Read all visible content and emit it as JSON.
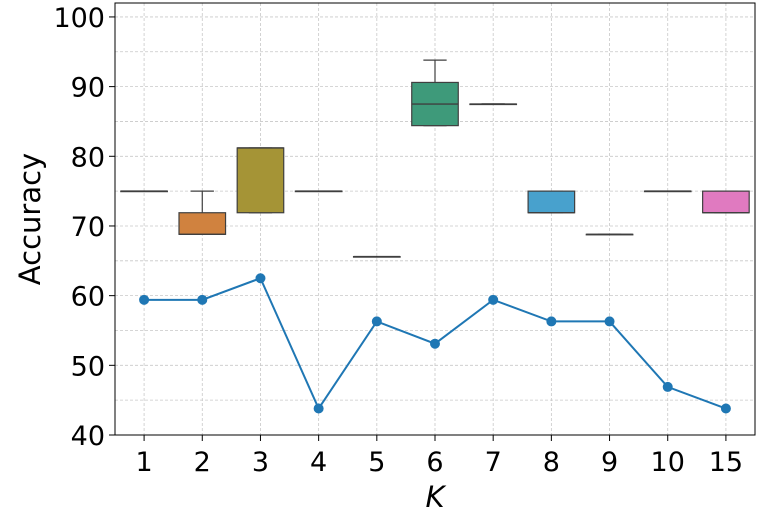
{
  "chart_data": {
    "type": "box+line",
    "title": "",
    "xlabel": "K",
    "ylabel": "Accuracy",
    "ylim": [
      40,
      102
    ],
    "yticks": [
      40,
      50,
      60,
      70,
      80,
      90,
      100
    ],
    "grid": true,
    "categories": [
      "1",
      "2",
      "3",
      "4",
      "5",
      "6",
      "7",
      "8",
      "9",
      "10",
      "15"
    ],
    "box_series": [
      {
        "category": "1",
        "color": "#b2b2b2",
        "whislo": 75.0,
        "q1": 75.0,
        "med": 75.0,
        "q3": 75.0,
        "whishi": 75.0
      },
      {
        "category": "2",
        "color": "#d0823f",
        "whislo": 68.8,
        "q1": 68.8,
        "med": 68.8,
        "q3": 71.9,
        "whishi": 75.0
      },
      {
        "category": "3",
        "color": "#a59436",
        "whislo": 71.9,
        "q1": 71.9,
        "med": 81.2,
        "q3": 81.2,
        "whishi": 81.2
      },
      {
        "category": "4",
        "color": "#b2b2b2",
        "whislo": 75.0,
        "q1": 75.0,
        "med": 75.0,
        "q3": 75.0,
        "whishi": 75.0
      },
      {
        "category": "5",
        "color": "#b2b2b2",
        "whislo": 65.6,
        "q1": 65.6,
        "med": 65.6,
        "q3": 65.6,
        "whishi": 65.6
      },
      {
        "category": "6",
        "color": "#3e9a7a",
        "whislo": 84.4,
        "q1": 84.4,
        "med": 87.5,
        "q3": 90.6,
        "whishi": 93.8
      },
      {
        "category": "7",
        "color": "#b2b2b2",
        "whislo": 87.5,
        "q1": 87.5,
        "med": 87.5,
        "q3": 87.5,
        "whishi": 87.5
      },
      {
        "category": "8",
        "color": "#48a1cd",
        "whislo": 71.9,
        "q1": 71.9,
        "med": 71.9,
        "q3": 75.0,
        "whishi": 75.0
      },
      {
        "category": "9",
        "color": "#b2b2b2",
        "whislo": 68.8,
        "q1": 68.8,
        "med": 68.8,
        "q3": 68.8,
        "whishi": 68.8
      },
      {
        "category": "10",
        "color": "#b2b2b2",
        "whislo": 75.0,
        "q1": 75.0,
        "med": 75.0,
        "q3": 75.0,
        "whishi": 75.0
      },
      {
        "category": "15",
        "color": "#e07ac0",
        "whislo": 71.9,
        "q1": 71.9,
        "med": 71.9,
        "q3": 75.0,
        "whishi": 75.0
      }
    ],
    "line_series": {
      "color": "#1f77b4",
      "values": [
        59.4,
        59.4,
        62.5,
        43.8,
        56.3,
        53.1,
        59.4,
        56.3,
        56.3,
        46.9,
        43.8
      ]
    }
  }
}
